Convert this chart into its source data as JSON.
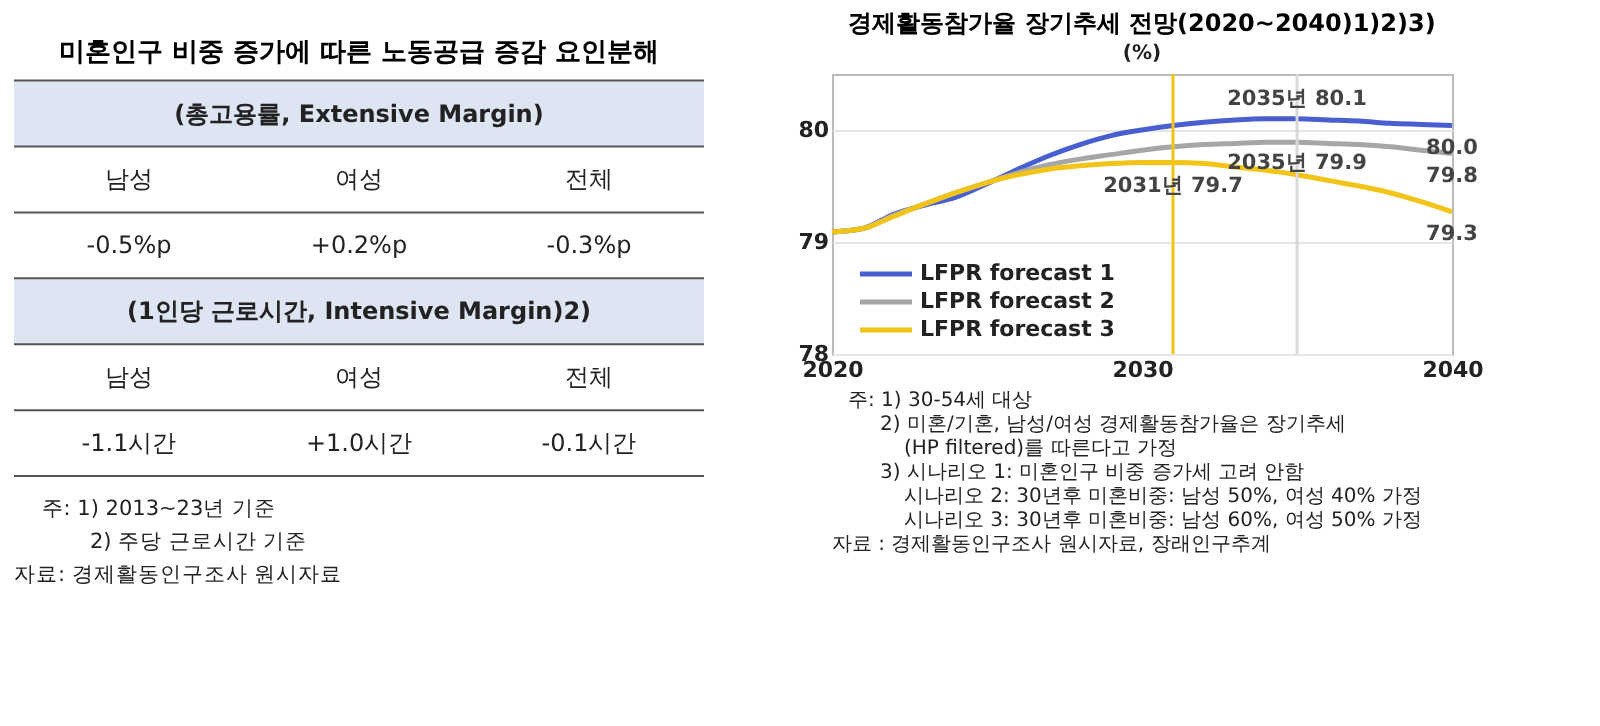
{
  "chart_data": [
    {
      "type": "other",
      "title": "미혼인구 비중 증가에 따른 노동공급 증감 요인분해",
      "annotations": [
        "(총고용률, Extensive Margin)",
        "남성",
        "여성",
        "전체",
        "-0.5%p",
        "+0.2%p",
        "-0.3%p",
        "(1인당 근로시간, Intensive Margin)2)",
        "남성",
        "여성",
        "전체",
        "-1.1시간",
        "+1.0시간",
        "-0.1시간",
        "주: 1) 2013~23년 기준",
        "2) 주당 근로시간 기준",
        "자료: 경제활동인구조사 원시자료"
      ]
    },
    {
      "type": "line",
      "title": "경제활동참가율 장기추세 전망(2020~2040)1)2)3)",
      "ylabel": "(%)",
      "x": [
        2020,
        2021,
        2022,
        2023,
        2024,
        2025,
        2026,
        2027,
        2028,
        2029,
        2030,
        2031,
        2032,
        2033,
        2034,
        2035,
        2036,
        2037,
        2038,
        2039,
        2040
      ],
      "series": [
        {
          "name": "LFPR forecast 1",
          "color": "#4a5fcf",
          "values": [
            79.09,
            79.12,
            79.25,
            79.33,
            79.4,
            79.52,
            79.65,
            79.77,
            79.87,
            79.95,
            80.0,
            80.04,
            80.07,
            80.09,
            80.1,
            80.1,
            80.09,
            80.08,
            80.06,
            80.05,
            80.04
          ]
        },
        {
          "name": "LFPR forecast 2",
          "color": "#a6a6a6",
          "values": [
            79.09,
            79.12,
            79.24,
            79.34,
            79.44,
            79.53,
            79.62,
            79.69,
            79.74,
            79.78,
            79.82,
            79.85,
            79.87,
            79.88,
            79.89,
            79.89,
            79.88,
            79.87,
            79.85,
            79.82,
            79.79
          ]
        },
        {
          "name": "LFPR forecast 3",
          "color": "#f2c418",
          "values": [
            79.09,
            79.12,
            79.23,
            79.34,
            79.44,
            79.53,
            79.6,
            79.65,
            79.68,
            79.7,
            79.71,
            79.71,
            79.7,
            79.67,
            79.64,
            79.6,
            79.55,
            79.5,
            79.44,
            79.36,
            79.27
          ]
        }
      ],
      "xlim": [
        2020,
        2040
      ],
      "xticks": [
        2020,
        2030,
        2040
      ],
      "ylim": [
        78,
        80.5
      ],
      "yticks": [
        78,
        79,
        80
      ],
      "grid": "y",
      "legend": "bottom left",
      "marker": "none",
      "line_style": "solid",
      "ref_lines": [
        {
          "axis": "x",
          "value": 2031,
          "color": "#f2c418"
        },
        {
          "axis": "x",
          "value": 2035,
          "color": "#d9d9d9"
        }
      ],
      "annotations": [
        {
          "text": "2035년 80.1",
          "x": 2035,
          "y": 80.1
        },
        {
          "text": "2035년 79.9",
          "x": 2035,
          "y": 79.9
        },
        {
          "text": "2031년 79.7",
          "x": 2031,
          "y": 79.7
        },
        {
          "text": "80.0",
          "x": 2040,
          "y": 80.04
        },
        {
          "text": "79.8",
          "x": 2040,
          "y": 79.79
        },
        {
          "text": "79.3",
          "x": 2040,
          "y": 79.27
        },
        "주: 1) 30-54세 대상",
        "2) 미혼/기혼, 남성/여성 경제활동참가율은 장기추세",
        "(HP filtered)를 따른다고 가정",
        "3) 시나리오 1: 미혼인구 비중 증가세 고려 안함",
        "시나리오 2: 30년후 미혼비중: 남성 50%, 여성 40% 가정",
        "시나리오 3: 30년후 미혼비중: 남성 60%, 여성 50% 가정",
        "자료 : 경제활동인구조사 원시자료, 장래인구추계"
      ]
    }
  ]
}
